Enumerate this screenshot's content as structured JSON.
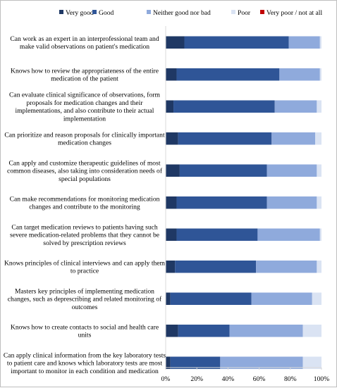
{
  "chart_data": {
    "type": "bar",
    "orientation": "horizontal",
    "stacked": true,
    "percent_stacked": true,
    "legend_position": "top",
    "grid": false,
    "xlim": [
      0,
      100
    ],
    "x_ticks": [
      "0%",
      "20%",
      "40%",
      "60%",
      "80%",
      "100%"
    ],
    "categories": [
      "Can work as an expert in an interprofessional team and make valid observations on patient's medication",
      "Knows how to review the appropriateness of the entire medication of the patient",
      "Can evaluate clinical significance of observations, form proposals for medication changes and their implementations, and also contribute to their actual implementation",
      "Can prioritize and reason proposals for clinically important medication changes",
      "Can apply and customize therapeutic guidelines of most common diseases, also taking into consideration needs of special populations",
      "Can make recommendations for monitoring medication changes and contribute to the monitoring",
      "Can target medication reviews to patients having such severe medication-related problems that they cannot be solved by prescription reviews",
      "Knows principles of clinical interviews and can apply them to practice",
      "Masters key principles of implementing medication changes, such as deprescribing and related monitoring of outcomes",
      "Knows how to create contacts to social and health care units",
      "Can apply clinical information from the key laboratory tests to patient care and knows which laboratory tests are most important to monitor in each condition and medication"
    ],
    "label_lines": [
      [
        "Can work as an expert in an interprofessional team and",
        "make valid observations on patient's medication"
      ],
      [
        "Knows how to review the appropriateness of the entire",
        "medication of the patient"
      ],
      [
        "Can evaluate clinical significance of observations, form",
        "proposals for medication changes and their",
        "implementations, and also contribute to their actual",
        "implementation"
      ],
      [
        "Can prioritize and reason proposals for clinically important",
        "medication changes"
      ],
      [
        "Can apply and customize therapeutic guidelines of most",
        "common diseases, also taking into consideration needs of",
        "special populations"
      ],
      [
        "Can make recommendations for monitoring medication",
        "changes and contribute to the monitoring"
      ],
      [
        "Can target medication reviews to patients having such",
        "severe medication-related problems that they cannot be",
        "solved by prescription reviews"
      ],
      [
        "Knows principles of clinical interviews and can apply them",
        "to practice"
      ],
      [
        "Masters key principles of implementing medication",
        "changes, such as deprescribing and related monitoring of",
        "outcomes"
      ],
      [
        "Knows how to create contacts to social and health care",
        "units"
      ],
      [
        "Can apply clinical information from the key laboratory tests",
        "to patient care and knows which laboratory tests are most",
        "important to monitor in each condition and medication"
      ]
    ],
    "series": [
      {
        "name": "Very good",
        "color": "#1f3864",
        "values": [
          12,
          7,
          5,
          8,
          9,
          7,
          7,
          6,
          3,
          8,
          3
        ]
      },
      {
        "name": "Good",
        "color": "#2f5597",
        "values": [
          67,
          66,
          65,
          60,
          56,
          58,
          52,
          52,
          52,
          33,
          32
        ]
      },
      {
        "name": "Neither good nor bad",
        "color": "#8faadc",
        "values": [
          20,
          26,
          27,
          28,
          32,
          32,
          40,
          39,
          39,
          47,
          53
        ]
      },
      {
        "name": "Poor",
        "color": "#dae3f3",
        "values": [
          1,
          1,
          3,
          4,
          3,
          3,
          1,
          3,
          6,
          12,
          12
        ]
      },
      {
        "name": "Very poor / not at all",
        "color": "#c00000",
        "values": [
          0,
          0,
          0,
          0,
          0,
          0,
          0,
          0,
          0,
          0,
          0
        ]
      }
    ]
  }
}
